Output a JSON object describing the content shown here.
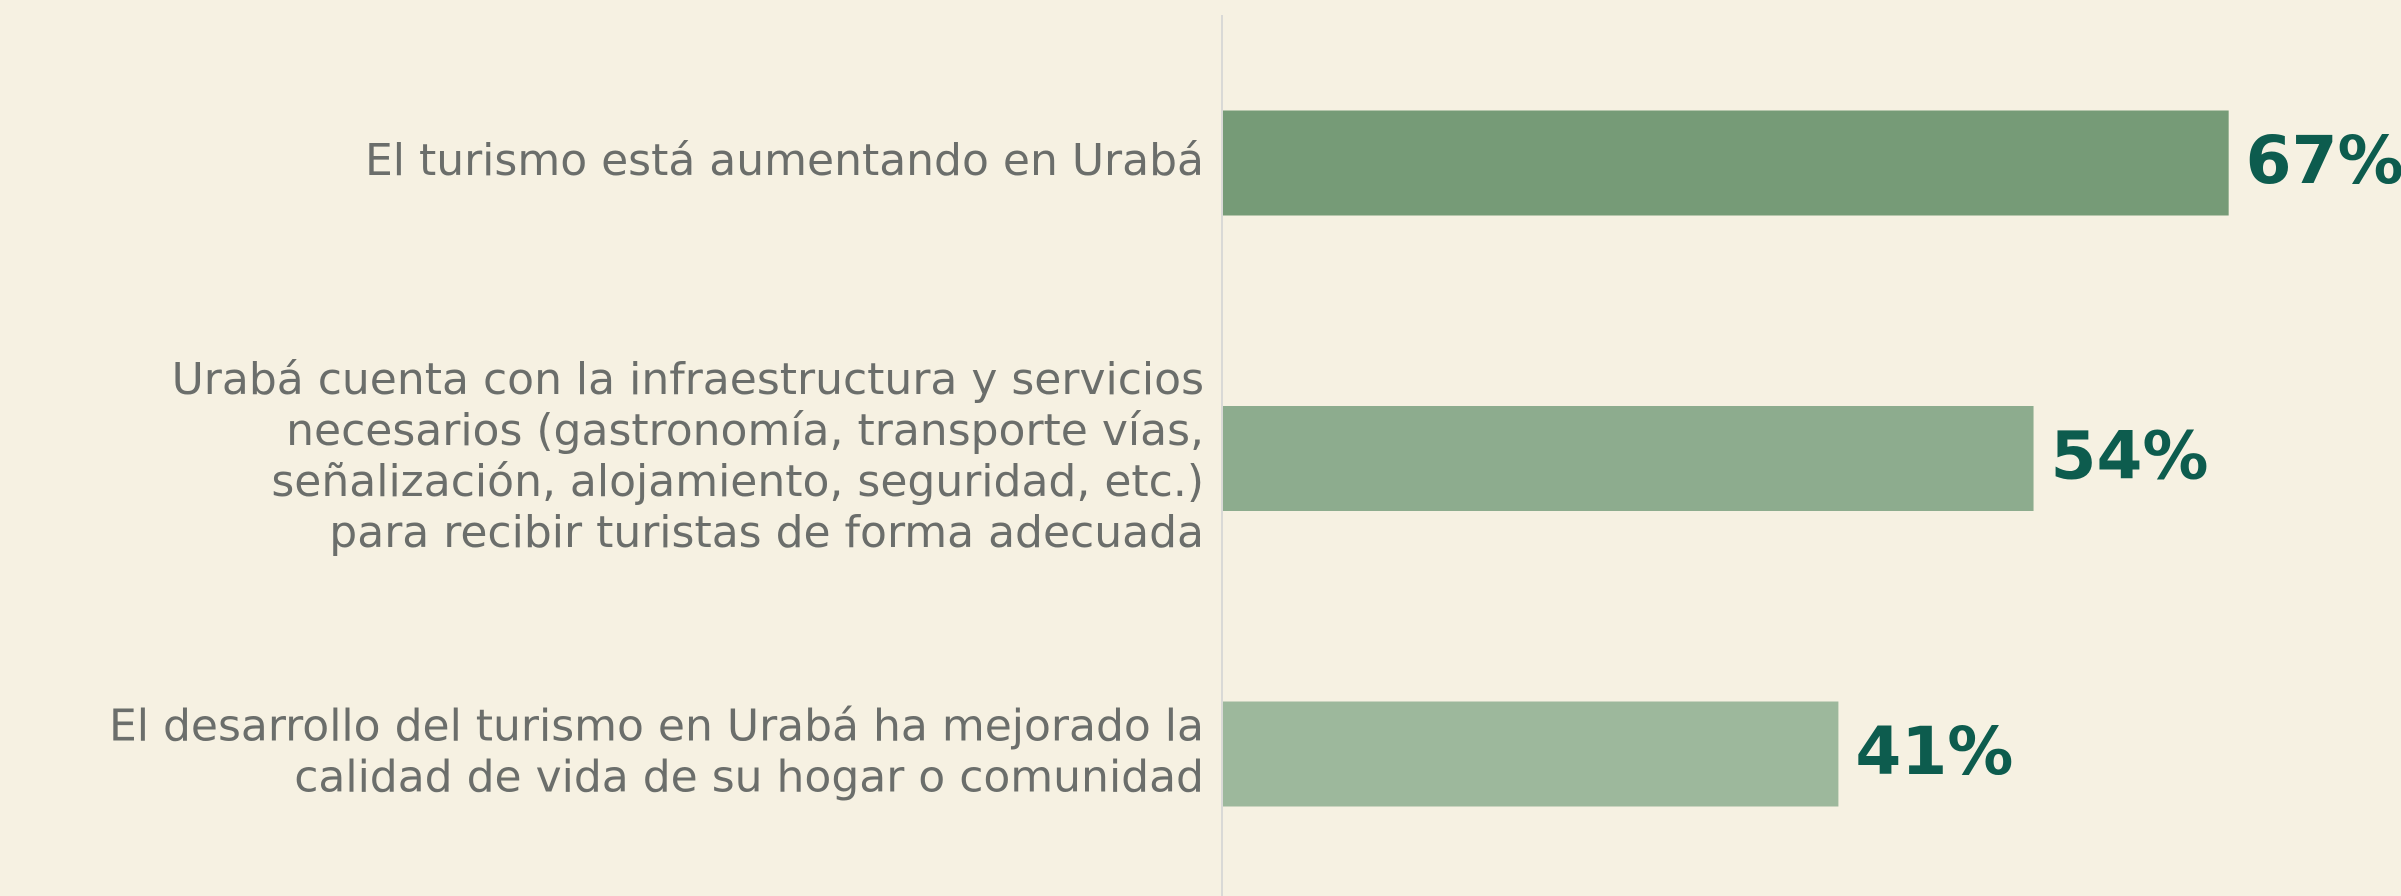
{
  "chart_data": {
    "type": "bar",
    "orientation": "horizontal",
    "categories": [
      [
        "El turismo está aumentando en Urabá"
      ],
      [
        "Urabá cuenta con la infraestructura y servicios",
        "necesarios (gastronomía, transporte vías,",
        "señalización, alojamiento, seguridad, etc.)",
        "para recibir turistas de forma adecuada"
      ],
      [
        "El desarrollo del turismo en Urabá ha mejorado la",
        "calidad de vida de su hogar o comunidad"
      ]
    ],
    "values": [
      67,
      54,
      41
    ],
    "value_labels": [
      "67%",
      "54%",
      "41%"
    ],
    "colors": [
      "#769b77",
      "#8dac8e",
      "#9db89c"
    ]
  }
}
